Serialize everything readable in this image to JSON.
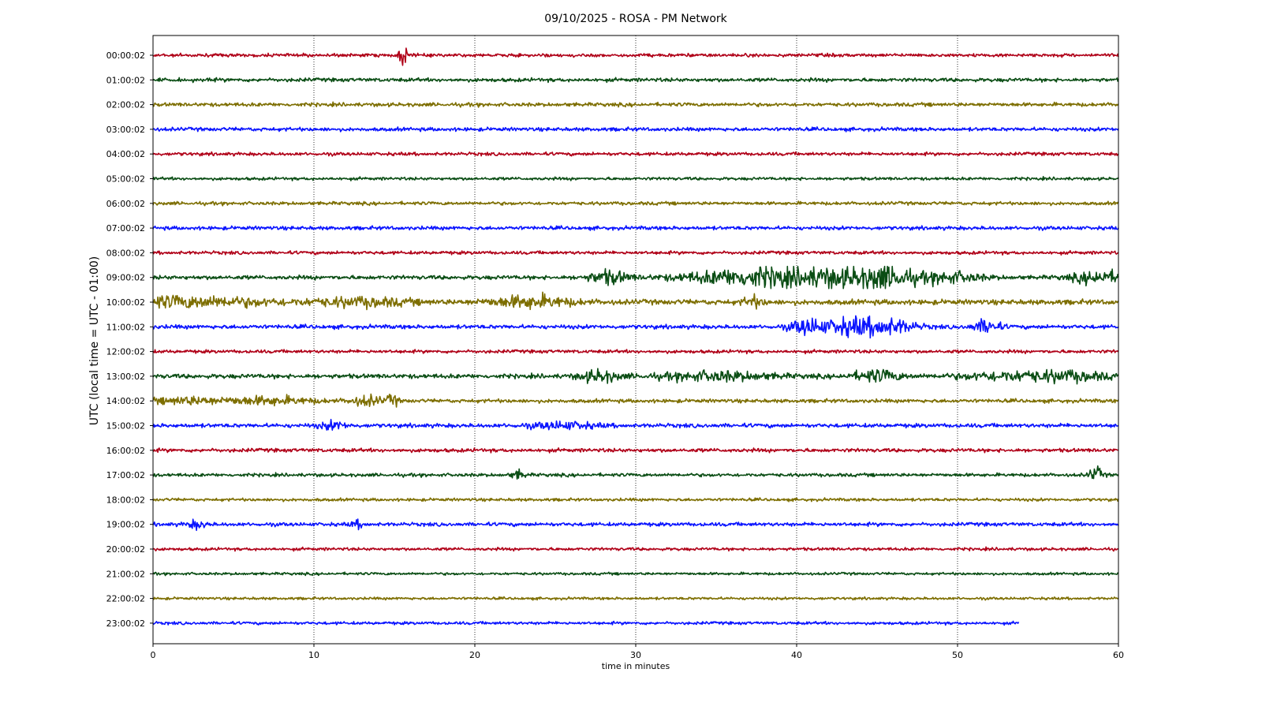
{
  "chart_data": {
    "type": "line",
    "title": "09/10/2025 - ROSA - PM Network",
    "xlabel": "time in minutes",
    "ylabel": "UTC (local time = UTC - 01:00)",
    "xlim": [
      0,
      60
    ],
    "x_ticks": [
      "0",
      "10",
      "20",
      "30",
      "40",
      "50",
      "60"
    ],
    "grid": "vertical dotted at 10-minute ticks",
    "color_cycle": [
      "#b00018",
      "#0a4d14",
      "#7d6e00",
      "#0a14ff"
    ],
    "series": [
      {
        "label": "00:00:02",
        "end_minute": 60,
        "events": [
          [
            15.6,
            1.0,
            0.3
          ]
        ],
        "noise": 0.18
      },
      {
        "label": "01:00:02",
        "end_minute": 60,
        "events": [],
        "noise": 0.2
      },
      {
        "label": "02:00:02",
        "end_minute": 60,
        "events": [],
        "noise": 0.2
      },
      {
        "label": "03:00:02",
        "end_minute": 60,
        "events": [],
        "noise": 0.2
      },
      {
        "label": "04:00:02",
        "end_minute": 60,
        "events": [],
        "noise": 0.18
      },
      {
        "label": "05:00:02",
        "end_minute": 60,
        "events": [],
        "noise": 0.16
      },
      {
        "label": "06:00:02",
        "end_minute": 60,
        "events": [],
        "noise": 0.18
      },
      {
        "label": "07:00:02",
        "end_minute": 60,
        "events": [],
        "noise": 0.2
      },
      {
        "label": "08:00:02",
        "end_minute": 60,
        "events": [],
        "noise": 0.18
      },
      {
        "label": "09:00:02",
        "end_minute": 60,
        "events": [
          [
            28.3,
            0.7,
            1.2
          ],
          [
            37.8,
            1.0,
            4.5
          ],
          [
            43.5,
            0.8,
            3.0
          ],
          [
            45.8,
            0.85,
            1.4
          ],
          [
            49.5,
            0.55,
            2.0
          ],
          [
            58.8,
            0.65,
            1.6
          ]
        ],
        "noise": 0.22
      },
      {
        "label": "10:00:02",
        "end_minute": 60,
        "events": [
          [
            1.5,
            0.55,
            6.0
          ],
          [
            13.0,
            0.4,
            3.0
          ],
          [
            23.5,
            0.6,
            2.5
          ],
          [
            37.3,
            0.55,
            0.6
          ]
        ],
        "noise": 0.28
      },
      {
        "label": "11:00:02",
        "end_minute": 60,
        "events": [
          [
            40.6,
            0.75,
            1.0
          ],
          [
            43.5,
            0.9,
            2.0
          ],
          [
            46.0,
            0.6,
            1.5
          ],
          [
            51.8,
            0.75,
            0.8
          ]
        ],
        "noise": 0.22
      },
      {
        "label": "12:00:02",
        "end_minute": 60,
        "events": [],
        "noise": 0.18
      },
      {
        "label": "13:00:02",
        "end_minute": 60,
        "events": [
          [
            27.7,
            0.6,
            1.2
          ],
          [
            35.0,
            0.45,
            3.5
          ],
          [
            45.0,
            0.6,
            1.5
          ],
          [
            53.0,
            0.4,
            3.0
          ],
          [
            57.0,
            0.45,
            2.5
          ]
        ],
        "noise": 0.24
      },
      {
        "label": "14:00:02",
        "end_minute": 60,
        "events": [
          [
            2.0,
            0.35,
            2.0
          ],
          [
            7.0,
            0.4,
            3.0
          ],
          [
            13.3,
            0.5,
            1.0
          ],
          [
            14.9,
            0.65,
            0.3
          ]
        ],
        "noise": 0.2
      },
      {
        "label": "15:00:02",
        "end_minute": 60,
        "events": [
          [
            11.2,
            0.4,
            0.8
          ],
          [
            25.5,
            0.35,
            2.0
          ]
        ],
        "noise": 0.22
      },
      {
        "label": "16:00:02",
        "end_minute": 60,
        "events": [],
        "noise": 0.2
      },
      {
        "label": "17:00:02",
        "end_minute": 60,
        "events": [
          [
            22.7,
            0.45,
            0.4
          ],
          [
            58.6,
            0.75,
            0.4
          ]
        ],
        "noise": 0.18
      },
      {
        "label": "18:00:02",
        "end_minute": 60,
        "events": [],
        "noise": 0.16
      },
      {
        "label": "19:00:02",
        "end_minute": 60,
        "events": [
          [
            2.7,
            0.4,
            0.6
          ],
          [
            12.7,
            0.35,
            0.4
          ]
        ],
        "noise": 0.2
      },
      {
        "label": "20:00:02",
        "end_minute": 60,
        "events": [],
        "noise": 0.16
      },
      {
        "label": "21:00:02",
        "end_minute": 60,
        "events": [],
        "noise": 0.14
      },
      {
        "label": "22:00:02",
        "end_minute": 60,
        "events": [],
        "noise": 0.14
      },
      {
        "label": "23:00:02",
        "end_minute": 53.8,
        "events": [],
        "noise": 0.16
      }
    ]
  }
}
